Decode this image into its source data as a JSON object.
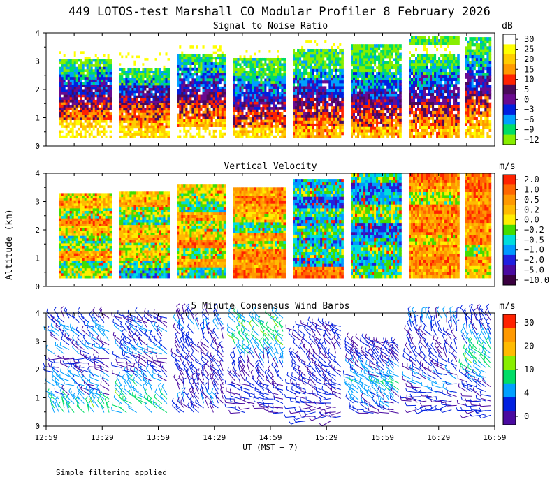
{
  "figure_title": "449 LOTOS-test Marshall CO Modular Profiler  8 February 2026",
  "footnote": "Simple filtering applied",
  "colors": {
    "frame": "#000000",
    "background": "#ffffff",
    "barb_default": "#3a2a9a"
  },
  "chart_data": [
    {
      "type": "heatmap",
      "title": "Signal to Noise Ratio",
      "ylabel": "Altitude (km)",
      "yticks": [
        "0",
        "1",
        "2",
        "3",
        "4"
      ],
      "ylim": [
        0,
        4
      ],
      "x_range": [
        "12:59",
        "16:59"
      ],
      "data_altitude_km": [
        0.3,
        4.0
      ],
      "segments": [
        {
          "start": "13:06",
          "end": "13:34",
          "top_km": 3.35,
          "profile": [
            25,
            20,
            12,
            5,
            2,
            -3,
            -6,
            -9,
            -12,
            30
          ]
        },
        {
          "start": "13:38",
          "end": "14:05",
          "top_km": 3.3,
          "profile": [
            20,
            15,
            10,
            5,
            0,
            -3,
            -9,
            -12,
            30,
            30
          ]
        },
        {
          "start": "14:09",
          "end": "14:35",
          "top_km": 3.55,
          "profile": [
            25,
            15,
            10,
            5,
            0,
            -3,
            -6,
            -9,
            -12,
            30
          ]
        },
        {
          "start": "14:39",
          "end": "15:07",
          "top_km": 3.4,
          "profile": [
            20,
            10,
            5,
            0,
            -3,
            -6,
            -9,
            -12,
            -12,
            30
          ]
        },
        {
          "start": "15:11",
          "end": "15:38",
          "top_km": 3.75,
          "profile": [
            15,
            10,
            5,
            0,
            -3,
            -6,
            -9,
            -12,
            -12,
            30
          ]
        },
        {
          "start": "15:42",
          "end": "16:09",
          "top_km": 3.6,
          "profile": [
            15,
            10,
            5,
            0,
            -3,
            -6,
            -9,
            -12,
            -12,
            -12
          ]
        },
        {
          "start": "16:13",
          "end": "16:40",
          "top_km": 3.9,
          "profile": [
            15,
            10,
            5,
            0,
            -3,
            -6,
            -9,
            -12,
            30,
            -12
          ]
        },
        {
          "start": "16:43",
          "end": "16:57",
          "top_km": 3.85,
          "profile": [
            20,
            15,
            10,
            5,
            0,
            -3,
            -6,
            -9,
            -12,
            -12
          ]
        }
      ],
      "colorbar": {
        "unit": "dB",
        "tick_labels": [
          "30",
          "25",
          "20",
          "15",
          "10",
          "5",
          "0",
          "−3",
          "−6",
          "−9",
          "−12"
        ],
        "colors": [
          "#ffffff",
          "#ffff00",
          "#ffcc00",
          "#ff9900",
          "#ff2200",
          "#4a0a5a",
          "#6a0a90",
          "#0020e0",
          "#00a0ff",
          "#00dd66",
          "#88ee00"
        ]
      }
    },
    {
      "type": "heatmap",
      "title": "Vertical Velocity",
      "ylabel": "Altitude (km)",
      "yticks": [
        "0",
        "1",
        "2",
        "3",
        "4"
      ],
      "ylim": [
        0,
        4
      ],
      "x_range": [
        "12:59",
        "16:59"
      ],
      "data_altitude_km": [
        0.3,
        4.0
      ],
      "segments": [
        {
          "start": "13:06",
          "end": "13:34",
          "top_km": 3.3,
          "profile": [
            -0.2,
            -0.5,
            0.2,
            -0.2,
            -0.5,
            0.0,
            0.5,
            -0.2,
            0.2,
            0.0
          ]
        },
        {
          "start": "13:38",
          "end": "14:05",
          "top_km": 3.35,
          "profile": [
            -1.0,
            -0.5,
            0.0,
            -0.2,
            0.2,
            0.0,
            -0.5,
            -0.2,
            0.2,
            0.0
          ]
        },
        {
          "start": "14:09",
          "end": "14:35",
          "top_km": 3.6,
          "profile": [
            -0.5,
            0.2,
            -0.2,
            0.5,
            0.0,
            -0.2,
            0.2,
            -0.5,
            -0.2,
            0.0
          ]
        },
        {
          "start": "14:39",
          "end": "15:07",
          "top_km": 3.5,
          "profile": [
            0.5,
            0.2,
            0.5,
            -0.2,
            0.2,
            -0.5,
            0.0,
            0.2,
            0.5,
            0.2
          ]
        },
        {
          "start": "15:11",
          "end": "15:38",
          "top_km": 3.8,
          "profile": [
            0.5,
            -1.0,
            -0.5,
            -1.0,
            -0.5,
            -1.0,
            -0.5,
            -2.0,
            -0.5,
            -1.0
          ]
        },
        {
          "start": "15:42",
          "end": "16:09",
          "top_km": 4.0,
          "profile": [
            -0.5,
            -1.0,
            -0.5,
            -1.0,
            -2.0,
            -0.5,
            -0.2,
            -1.0,
            -2.0,
            -0.5
          ]
        },
        {
          "start": "16:13",
          "end": "16:40",
          "top_km": 4.0,
          "profile": [
            0.2,
            0.5,
            0.2,
            0.0,
            0.5,
            0.2,
            0.5,
            -0.2,
            0.2,
            0.5
          ]
        },
        {
          "start": "16:43",
          "end": "16:57",
          "top_km": 4.0,
          "profile": [
            0.0,
            0.2,
            -0.2,
            0.5,
            0.2,
            1.0,
            0.5,
            0.2,
            1.0,
            0.5
          ]
        }
      ],
      "colorbar": {
        "unit": "m/s",
        "tick_labels": [
          "2.0",
          "1.0",
          "0.5",
          "0.2",
          "0.0",
          "−0.2",
          "−0.5",
          "−1.0",
          "−2.0",
          "−5.0",
          "−10.0"
        ],
        "colors": [
          "#ff2200",
          "#ff6600",
          "#ff9900",
          "#ffbb00",
          "#ffee00",
          "#44dd00",
          "#00dddd",
          "#0099ff",
          "#2020e0",
          "#4a0aa0",
          "#3a0040"
        ]
      }
    },
    {
      "type": "scatter",
      "subtype": "wind-barbs",
      "title": "5 Minute Consensus Wind Barbs",
      "ylabel": "Altitude (km)",
      "yticks": [
        "0",
        "1",
        "2",
        "3",
        "4"
      ],
      "ylim": [
        0,
        4
      ],
      "xlabel": "UT  (MST − 7)",
      "xticks": [
        "12:59",
        "13:29",
        "13:59",
        "14:29",
        "14:59",
        "15:29",
        "15:59",
        "16:29",
        "16:59"
      ],
      "segments": [
        {
          "start": "13:02",
          "end": "13:34",
          "bottom_km": 0.4,
          "top_km": 3.9,
          "speed_ms": [
            8,
            6,
            4,
            5,
            3,
            3,
            4,
            4,
            5,
            3
          ],
          "dir_deg": [
            330,
            320,
            300,
            310,
            290,
            280,
            300,
            310,
            300,
            320
          ]
        },
        {
          "start": "13:38",
          "end": "14:05",
          "bottom_km": 0.4,
          "top_km": 3.9,
          "speed_ms": [
            6,
            8,
            6,
            4,
            3,
            3,
            4,
            3,
            4,
            3
          ],
          "dir_deg": [
            300,
            310,
            320,
            310,
            300,
            290,
            300,
            320,
            310,
            300
          ]
        },
        {
          "start": "14:09",
          "end": "14:35",
          "bottom_km": 0.4,
          "top_km": 4.0,
          "speed_ms": [
            3,
            4,
            3,
            3,
            3,
            2,
            3,
            3,
            4,
            3
          ],
          "dir_deg": [
            320,
            330,
            340,
            330,
            320,
            310,
            320,
            330,
            340,
            330
          ]
        },
        {
          "start": "14:39",
          "end": "15:07",
          "bottom_km": 0.4,
          "top_km": 3.9,
          "speed_ms": [
            3,
            3,
            2,
            3,
            3,
            4,
            6,
            8,
            8,
            6
          ],
          "dir_deg": [
            270,
            280,
            300,
            320,
            330,
            340,
            330,
            320,
            320,
            310
          ]
        },
        {
          "start": "15:11",
          "end": "15:38",
          "bottom_km": 0.1,
          "top_km": 3.6,
          "speed_ms": [
            2,
            3,
            3,
            3,
            2,
            2,
            3,
            3,
            2,
            3
          ],
          "dir_deg": [
            260,
            270,
            280,
            300,
            310,
            300,
            320,
            330,
            310,
            300
          ]
        },
        {
          "start": "15:42",
          "end": "16:09",
          "bottom_km": 0.4,
          "top_km": 3.0,
          "speed_ms": [
            3,
            4,
            5,
            6,
            6,
            5,
            4,
            3,
            3,
            3
          ],
          "dir_deg": [
            290,
            300,
            310,
            310,
            300,
            300,
            310,
            320,
            310,
            300
          ]
        },
        {
          "start": "16:13",
          "end": "16:40",
          "bottom_km": 0.5,
          "top_km": 3.9,
          "speed_ms": [
            2,
            3,
            4,
            4,
            3,
            3,
            2,
            3,
            3,
            4
          ],
          "dir_deg": [
            260,
            270,
            280,
            300,
            310,
            320,
            330,
            320,
            340,
            350
          ]
        },
        {
          "start": "16:43",
          "end": "16:58",
          "bottom_km": 0.3,
          "top_km": 4.0,
          "speed_ms": [
            2,
            3,
            3,
            4,
            6,
            8,
            7,
            5,
            3,
            3
          ],
          "dir_deg": [
            270,
            280,
            290,
            300,
            310,
            320,
            320,
            330,
            340,
            330
          ]
        }
      ],
      "colorbar": {
        "unit": "m/s",
        "tick_labels": [
          "30",
          "20",
          "10",
          "4",
          "0"
        ],
        "colors": [
          "#ff2200",
          "#ff9900",
          "#ffbb00",
          "#88ee00",
          "#00dd66",
          "#00a0ff",
          "#0020e0",
          "#4a0aa0"
        ]
      }
    }
  ]
}
